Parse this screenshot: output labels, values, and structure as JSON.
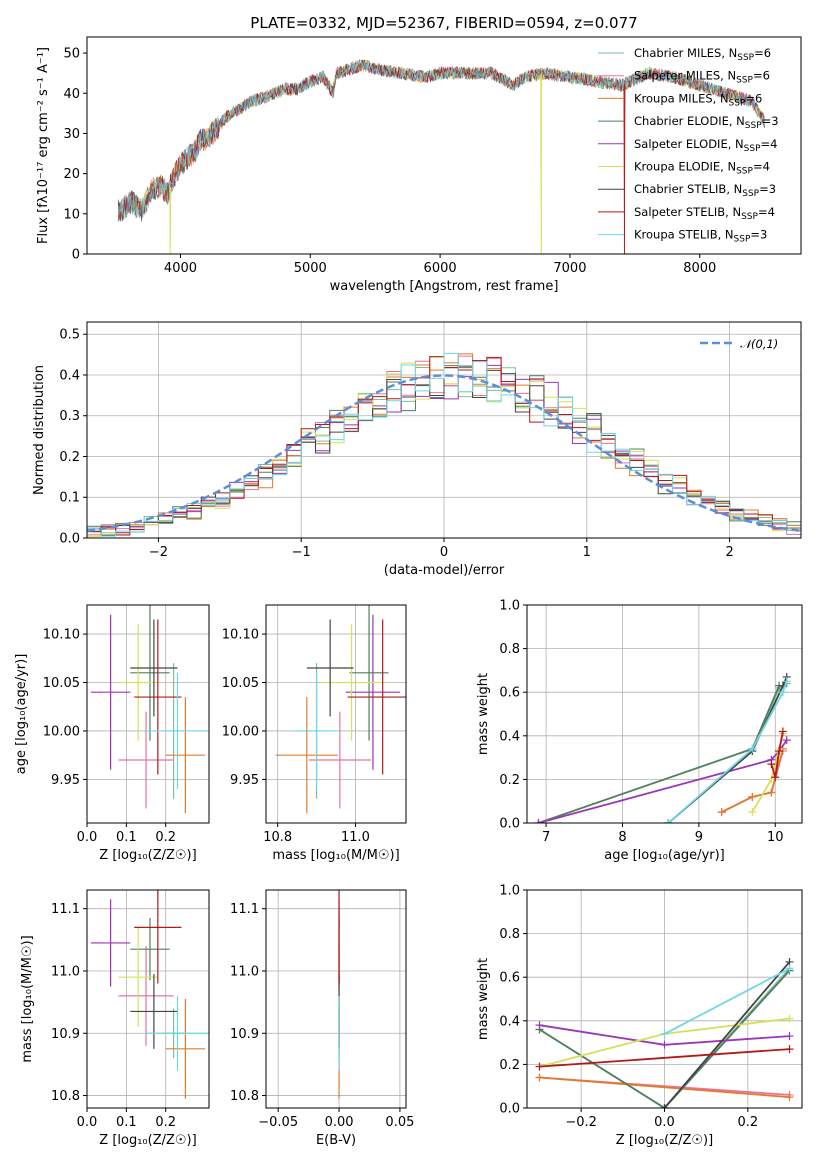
{
  "chart_data": [
    {
      "id": "spectrum",
      "type": "line",
      "title": "PLATE=0332, MJD=52367, FIBERID=0594, z=0.077",
      "xlabel": "wavelength [Angstrom, rest frame]",
      "ylabel": "Flux [fλ10⁻¹⁷ erg cm⁻² s⁻¹ A⁻¹]",
      "xlim": [
        3280,
        8780
      ],
      "ylim": [
        0,
        54
      ],
      "xticks": [
        4000,
        5000,
        6000,
        7000,
        8000
      ],
      "yticks": [
        0,
        10,
        20,
        30,
        40,
        50
      ],
      "grid": false,
      "legend_position": "top-right",
      "spectrum_shape": {
        "x": [
          3550,
          3620,
          3700,
          3780,
          3850,
          3900,
          3960,
          4000,
          4050,
          4100,
          4150,
          4250,
          4350,
          4450,
          4550,
          4650,
          4800,
          4900,
          5000,
          5100,
          5175,
          5200,
          5300,
          5400,
          5500,
          5700,
          5890,
          6000,
          6200,
          6400,
          6563,
          6650,
          6800,
          7000,
          7200,
          7400,
          7600,
          7800,
          8000,
          8200,
          8400,
          8500
        ],
        "y": [
          11,
          13,
          11,
          16,
          17,
          15,
          20,
          22,
          24,
          25,
          28,
          30,
          34,
          36,
          38,
          39,
          41,
          41,
          43,
          44,
          40,
          45,
          46,
          47,
          46,
          45,
          44,
          45,
          45,
          45,
          42,
          44,
          45,
          44,
          43,
          42,
          45,
          44,
          42,
          40,
          38,
          33
        ]
      },
      "series": [
        {
          "name": "Chabrier MILES, N_SSP=6",
          "color": "#7dbf98"
        },
        {
          "name": "Salpeter MILES, N_SSP=6",
          "color": "#e8749e"
        },
        {
          "name": "Kroupa MILES, N_SSP=6",
          "color": "#e07b2a"
        },
        {
          "name": "Chabrier ELODIE, N_SSP=3",
          "color": "#4f7f5f"
        },
        {
          "name": "Salpeter ELODIE, N_SSP=4",
          "color": "#9b36b8"
        },
        {
          "name": "Kroupa ELODIE, N_SSP=4",
          "color": "#d6e05a"
        },
        {
          "name": "Chabrier STELIB, N_SSP=3",
          "color": "#444444"
        },
        {
          "name": "Salpeter STELIB, N_SSP=4",
          "color": "#b31919"
        },
        {
          "name": "Kroupa STELIB, N_SSP=3",
          "color": "#6fd6e4"
        }
      ],
      "legend_labels": [
        "Chabrier MILES, N",
        "Salpeter MILES, N",
        "Kroupa MILES, N",
        "Chabrier ELODIE, N",
        "Salpeter ELODIE, N",
        "Kroupa ELODIE, N",
        "Chabrier STELIB, N",
        "Salpeter STELIB, N",
        "Kroupa STELIB, N"
      ],
      "legend_subscript": "SSP",
      "legend_counts": [
        "=6",
        "=6",
        "=6",
        "=3",
        "=4",
        "=4",
        "=3",
        "=4",
        "=3"
      ],
      "gap_features": [
        {
          "series": "Kroupa ELODIE, N_SSP=4",
          "x": 3920
        },
        {
          "series": "Kroupa ELODIE, N_SSP=4",
          "x": 6780
        },
        {
          "series": "Salpeter STELIB, N_SSP=4",
          "x": 7420
        }
      ]
    },
    {
      "id": "residuals",
      "type": "histogram",
      "xlabel": "(data-model)/error",
      "ylabel": "Normed distribution",
      "xlim": [
        -2.5,
        2.5
      ],
      "ylim": [
        0,
        0.53
      ],
      "xticks": [
        -2,
        -1,
        0,
        1,
        2
      ],
      "xtick_labels": [
        "−2",
        "−1",
        "0",
        "1",
        "2"
      ],
      "yticks": [
        0.0,
        0.1,
        0.2,
        0.3,
        0.4,
        0.5
      ],
      "ytick_labels": [
        "0.0",
        "0.1",
        "0.2",
        "0.3",
        "0.4",
        "0.5"
      ],
      "grid": true,
      "legend_label": "𝒩(0,1)",
      "legend_position": "top-right",
      "reference_curve": {
        "mean": 0,
        "std": 1,
        "color": "#5b8fd9"
      },
      "bin_width": 0.1
    },
    {
      "id": "age-vs-Z",
      "type": "errorbar",
      "xlabel": "Z [log₁₀(Z/Z☉)]",
      "ylabel": "age  [log₁₀(age/yr)]",
      "xlim": [
        0.0,
        0.31
      ],
      "ylim": [
        9.905,
        10.13
      ],
      "xticks": [
        0.0,
        0.1,
        0.2
      ],
      "xtick_labels": [
        "0.0",
        "0.1",
        "0.2"
      ],
      "yticks": [
        9.95,
        10.0,
        10.05,
        10.1
      ],
      "ytick_labels": [
        "9.95",
        "10.00",
        "10.05",
        "10.10"
      ],
      "grid": true
    },
    {
      "id": "age-vs-mass",
      "type": "errorbar",
      "xlabel": "mass [log₁₀(M/M☉)]",
      "ylabel": "",
      "xlim": [
        10.77,
        11.13
      ],
      "ylim": [
        9.905,
        10.13
      ],
      "xticks": [
        10.8,
        11.0
      ],
      "xtick_labels": [
        "10.8",
        "11.0"
      ],
      "yticks": [
        9.95,
        10.0,
        10.05,
        10.1
      ],
      "ytick_labels": [
        "9.95",
        "10.00",
        "10.05",
        "10.10"
      ],
      "grid": true
    },
    {
      "id": "weight-vs-age",
      "type": "line",
      "xlabel": "age  [log₁₀(age/yr)]",
      "ylabel": "mass weight",
      "xlim": [
        6.75,
        10.35
      ],
      "ylim": [
        0,
        1
      ],
      "xticks": [
        7,
        8,
        9,
        10
      ],
      "xtick_labels": [
        "7",
        "8",
        "9",
        "10"
      ],
      "yticks": [
        0.0,
        0.2,
        0.4,
        0.6,
        0.8,
        1.0
      ],
      "ytick_labels": [
        "0.0",
        "0.2",
        "0.4",
        "0.6",
        "0.8",
        "1.0"
      ],
      "grid": true
    },
    {
      "id": "mass-vs-Z",
      "type": "errorbar",
      "xlabel": "Z [log₁₀(Z/Z☉)]",
      "ylabel": "mass [log₁₀(M/M☉)]",
      "xlim": [
        0.0,
        0.31
      ],
      "ylim": [
        10.78,
        11.13
      ],
      "xticks": [
        0.0,
        0.1,
        0.2
      ],
      "xtick_labels": [
        "0.0",
        "0.1",
        "0.2"
      ],
      "yticks": [
        10.8,
        10.9,
        11.0,
        11.1
      ],
      "ytick_labels": [
        "10.8",
        "10.9",
        "11.0",
        "11.1"
      ],
      "grid": true
    },
    {
      "id": "mass-vs-EBV",
      "type": "errorbar",
      "xlabel": "E(B-V)",
      "ylabel": "",
      "xlim": [
        -0.06,
        0.055
      ],
      "ylim": [
        10.78,
        11.13
      ],
      "xticks": [
        -0.05,
        0.0,
        0.05
      ],
      "xtick_labels": [
        "−0.05",
        "0.00",
        "0.05"
      ],
      "yticks": [
        10.8,
        10.9,
        11.0,
        11.1
      ],
      "ytick_labels": [
        "10.8",
        "10.9",
        "11.0",
        "11.1"
      ],
      "grid": true
    },
    {
      "id": "weight-vs-Z",
      "type": "line",
      "xlabel": "Z [log₁₀(Z/Z☉)]",
      "ylabel": "mass weight",
      "xlim": [
        -0.33,
        0.33
      ],
      "ylim": [
        0,
        1
      ],
      "xticks": [
        -0.2,
        0.0,
        0.2
      ],
      "xtick_labels": [
        "−0.2",
        "0.0",
        "0.2"
      ],
      "yticks": [
        0.0,
        0.2,
        0.4,
        0.6,
        0.8,
        1.0
      ],
      "ytick_labels": [
        "0.0",
        "0.2",
        "0.4",
        "0.6",
        "0.8",
        "1.0"
      ],
      "grid": true
    }
  ],
  "models": [
    {
      "name": "Chabrier MILES",
      "color": "#7dbf98",
      "Z": 0.22,
      "Z_err": 0.03,
      "age": 10.0,
      "age_err": 0.07,
      "mass": 10.9,
      "mass_err": 0.04,
      "ebv": 0.0,
      "w_age": [
        [
          8.6,
          0.0
        ],
        [
          9.7,
          0.33
        ],
        [
          10.05,
          0.62
        ],
        [
          10.15,
          0.64
        ]
      ],
      "w_Z": [
        [
          -0.3,
          0.36
        ],
        [
          0.0,
          0.0
        ],
        [
          0.3,
          0.64
        ]
      ]
    },
    {
      "name": "Salpeter MILES",
      "color": "#e8749e",
      "Z": 0.15,
      "Z_err": 0.07,
      "age": 9.97,
      "age_err": 0.05,
      "mass": 10.96,
      "mass_err": 0.08,
      "ebv": 0.0,
      "w_age": [
        [
          9.3,
          0.05
        ],
        [
          9.7,
          0.12
        ],
        [
          9.95,
          0.14
        ],
        [
          10.1,
          0.33
        ]
      ],
      "w_Z": [
        [
          -0.3,
          0.14
        ],
        [
          0.3,
          0.06
        ]
      ]
    },
    {
      "name": "Kroupa MILES",
      "color": "#e07b2a",
      "Z": 0.25,
      "Z_err": 0.05,
      "age": 9.975,
      "age_err": 0.06,
      "mass": 10.875,
      "mass_err": 0.08,
      "ebv": 0.0,
      "w_age": [
        [
          9.3,
          0.05
        ],
        [
          9.7,
          0.12
        ],
        [
          9.95,
          0.14
        ],
        [
          10.1,
          0.34
        ]
      ],
      "w_Z": [
        [
          -0.3,
          0.14
        ],
        [
          0.3,
          0.05
        ]
      ]
    },
    {
      "name": "Chabrier ELODIE",
      "color": "#4f7f5f",
      "Z": 0.16,
      "Z_err": 0.05,
      "age": 10.06,
      "age_err": 0.07,
      "mass": 11.035,
      "mass_err": 0.05,
      "ebv": 0.0,
      "w_age": [
        [
          6.9,
          0.0
        ],
        [
          9.7,
          0.34
        ],
        [
          10.05,
          0.63
        ]
      ],
      "w_Z": [
        [
          -0.3,
          0.36
        ],
        [
          0.0,
          0.0
        ],
        [
          0.3,
          0.63
        ]
      ]
    },
    {
      "name": "Salpeter ELODIE",
      "color": "#9b36b8",
      "Z": 0.06,
      "Z_err": 0.05,
      "age": 10.04,
      "age_err": 0.08,
      "mass": 11.045,
      "mass_err": 0.07,
      "ebv": 0.0,
      "w_age": [
        [
          6.9,
          0.0
        ],
        [
          9.95,
          0.29
        ],
        [
          10.05,
          0.33
        ],
        [
          10.15,
          0.38
        ]
      ],
      "w_Z": [
        [
          -0.3,
          0.38
        ],
        [
          0.0,
          0.29
        ],
        [
          0.3,
          0.33
        ]
      ]
    },
    {
      "name": "Kroupa ELODIE",
      "color": "#d6e05a",
      "Z": 0.13,
      "Z_err": 0.05,
      "age": 10.05,
      "age_err": 0.06,
      "mass": 10.99,
      "mass_err": 0.08,
      "ebv": 0.0,
      "w_age": [
        [
          9.7,
          0.05
        ],
        [
          9.95,
          0.2
        ],
        [
          10.05,
          0.34
        ],
        [
          10.1,
          0.41
        ]
      ],
      "w_Z": [
        [
          -0.3,
          0.19
        ],
        [
          0.0,
          0.34
        ],
        [
          0.3,
          0.41
        ]
      ]
    },
    {
      "name": "Chabrier STELIB",
      "color": "#444444",
      "Z": 0.17,
      "Z_err": 0.06,
      "age": 10.065,
      "age_err": 0.05,
      "mass": 10.935,
      "mass_err": 0.06,
      "ebv": 0.0,
      "w_age": [
        [
          8.6,
          0.0
        ],
        [
          9.7,
          0.33
        ],
        [
          10.1,
          0.63
        ],
        [
          10.15,
          0.67
        ]
      ],
      "w_Z": [
        [
          0.0,
          0.0
        ],
        [
          0.3,
          0.67
        ]
      ]
    },
    {
      "name": "Salpeter STELIB",
      "color": "#b31919",
      "Z": 0.18,
      "Z_err": 0.06,
      "age": 10.035,
      "age_err": 0.08,
      "mass": 11.07,
      "mass_err": 0.09,
      "ebv": 0.0,
      "w_age": [
        [
          9.95,
          0.27
        ],
        [
          10.0,
          0.21
        ],
        [
          10.05,
          0.33
        ],
        [
          10.1,
          0.42
        ]
      ],
      "w_Z": [
        [
          -0.3,
          0.19
        ],
        [
          0.3,
          0.27
        ]
      ]
    },
    {
      "name": "Kroupa STELIB",
      "color": "#6fd6e4",
      "Z": 0.23,
      "Z_err": 0.08,
      "age": 10.0,
      "age_err": 0.06,
      "mass": 10.9,
      "mass_err": 0.06,
      "ebv": 0.0,
      "w_age": [
        [
          8.6,
          0.0
        ],
        [
          9.7,
          0.34
        ],
        [
          10.1,
          0.6
        ],
        [
          10.15,
          0.65
        ]
      ],
      "w_Z": [
        [
          0.0,
          0.34
        ],
        [
          0.3,
          0.64
        ]
      ]
    }
  ]
}
